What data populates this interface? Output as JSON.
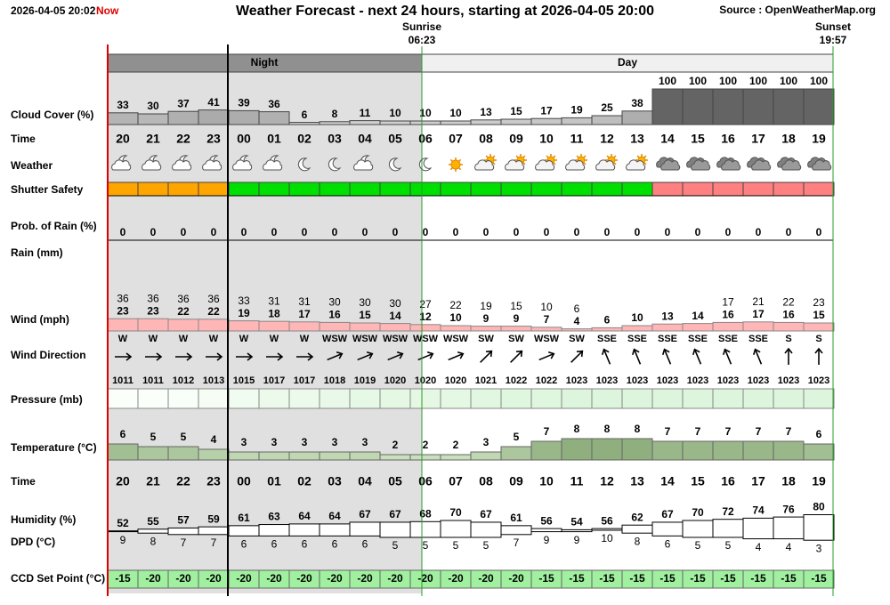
{
  "header": {
    "timestamp": "2026-04-05 20:02",
    "now": "Now",
    "title": "Weather Forecast - next 24 hours, starting at 2026-04-05 20:00",
    "source": "Source : OpenWeatherMap.org",
    "sunrise_label": "Sunrise",
    "sunrise_time": "06:23",
    "sunset_label": "Sunset",
    "sunset_time": "19:57",
    "night": "Night",
    "day": "Day"
  },
  "labels": {
    "cloud": "Cloud Cover (%)",
    "time": "Time",
    "weather": "Weather",
    "shutter": "Shutter Safety",
    "rain_prob": "Prob. of Rain (%)",
    "rain": "Rain (mm)",
    "wind": "Wind (mph)",
    "wind_dir": "Wind Direction",
    "pressure": "Pressure (mb)",
    "temperature": "Temperature (°C)",
    "time2": "Time",
    "humidity": "Humidity (%)",
    "dpd": "DPD (°C)",
    "ccd": "CCD Set Point (°C)"
  },
  "hours": [
    "20",
    "21",
    "22",
    "23",
    "00",
    "01",
    "02",
    "03",
    "04",
    "05",
    "06",
    "07",
    "08",
    "09",
    "10",
    "11",
    "12",
    "13",
    "14",
    "15",
    "16",
    "17",
    "18",
    "19"
  ],
  "cloud": [
    33,
    30,
    37,
    41,
    39,
    36,
    6,
    8,
    11,
    10,
    10,
    10,
    13,
    15,
    17,
    19,
    25,
    38,
    100,
    100,
    100,
    100,
    100,
    100
  ],
  "shutter_colors": [
    "#ffa500",
    "#ffa500",
    "#ffa500",
    "#ffa500",
    "#00e000",
    "#00e000",
    "#00e000",
    "#00e000",
    "#00e000",
    "#00e000",
    "#00e000",
    "#00e000",
    "#00e000",
    "#00e000",
    "#00e000",
    "#00e000",
    "#00e000",
    "#00e000",
    "#ff8080",
    "#ff8080",
    "#ff8080",
    "#ff8080",
    "#ff8080",
    "#ff8080"
  ],
  "rain_prob": [
    0,
    0,
    0,
    0,
    0,
    0,
    0,
    0,
    0,
    0,
    0,
    0,
    0,
    0,
    0,
    0,
    0,
    0,
    0,
    0,
    0,
    0,
    0,
    0
  ],
  "wind_gust": [
    36,
    36,
    36,
    36,
    33,
    31,
    31,
    30,
    30,
    30,
    27,
    22,
    19,
    15,
    10,
    6,
    null,
    null,
    null,
    null,
    17,
    21,
    22,
    23
  ],
  "wind_speed": [
    23,
    23,
    22,
    22,
    19,
    18,
    17,
    16,
    15,
    14,
    12,
    10,
    9,
    9,
    7,
    4,
    6,
    10,
    13,
    14,
    16,
    17,
    16,
    15
  ],
  "wind_dir": [
    "W",
    "W",
    "W",
    "W",
    "W",
    "W",
    "W",
    "WSW",
    "WSW",
    "WSW",
    "WSW",
    "WSW",
    "SW",
    "SW",
    "WSW",
    "SW",
    "SSE",
    "SSE",
    "SSE",
    "SSE",
    "SSE",
    "SSE",
    "S",
    "S"
  ],
  "pressure": [
    1011,
    1011,
    1012,
    1013,
    1015,
    1017,
    1017,
    1018,
    1019,
    1020,
    1020,
    1020,
    1021,
    1022,
    1022,
    1023,
    1023,
    1023,
    1023,
    1023,
    1023,
    1023,
    1023,
    1023
  ],
  "temperature": [
    6,
    5,
    5,
    4,
    3,
    3,
    3,
    3,
    3,
    2,
    2,
    2,
    3,
    5,
    7,
    8,
    8,
    8,
    7,
    7,
    7,
    7,
    7,
    6
  ],
  "humidity": [
    52,
    55,
    57,
    59,
    61,
    63,
    64,
    64,
    67,
    67,
    68,
    70,
    67,
    61,
    56,
    54,
    56,
    62,
    67,
    70,
    72,
    74,
    76,
    80
  ],
  "dpd": [
    9,
    8,
    7,
    7,
    6,
    6,
    6,
    6,
    6,
    5,
    5,
    5,
    5,
    7,
    9,
    9,
    10,
    8,
    6,
    5,
    5,
    4,
    4,
    3
  ],
  "ccd": [
    -15,
    -20,
    -20,
    -20,
    -20,
    -20,
    -20,
    -20,
    -20,
    -20,
    -20,
    -20,
    -20,
    -20,
    -15,
    -15,
    -15,
    -15,
    -15,
    -15,
    -15,
    -15,
    -15,
    -15
  ]
}
